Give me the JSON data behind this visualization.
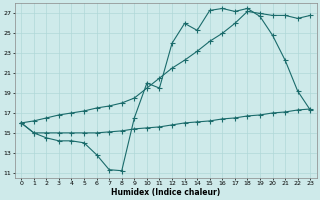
{
  "title": "",
  "xlabel": "Humidex (Indice chaleur)",
  "bg_color": "#ceeaea",
  "grid_color": "#b0d8d8",
  "line_color": "#1a6b6b",
  "xlim": [
    -0.5,
    23.5
  ],
  "ylim": [
    10.5,
    28
  ],
  "yticks": [
    11,
    13,
    15,
    17,
    19,
    21,
    23,
    25,
    27
  ],
  "xticks": [
    0,
    1,
    2,
    3,
    4,
    5,
    6,
    7,
    8,
    9,
    10,
    11,
    12,
    13,
    14,
    15,
    16,
    17,
    18,
    19,
    20,
    21,
    22,
    23
  ],
  "line1_x": [
    0,
    1,
    2,
    3,
    4,
    5,
    6,
    7,
    8,
    9,
    10,
    11,
    12,
    13,
    14,
    15,
    16,
    17,
    18,
    19,
    20,
    21,
    22,
    23
  ],
  "line1_y": [
    16.0,
    15.0,
    14.5,
    14.2,
    14.2,
    14.0,
    12.8,
    11.3,
    11.2,
    16.5,
    20.0,
    19.5,
    24.0,
    26.0,
    25.3,
    27.3,
    27.5,
    27.2,
    27.5,
    26.7,
    24.8,
    22.3,
    19.2,
    17.3
  ],
  "line2_x": [
    0,
    1,
    2,
    3,
    4,
    5,
    6,
    7,
    8,
    9,
    10,
    11,
    12,
    13,
    14,
    15,
    16,
    17,
    18,
    19,
    20,
    21,
    22,
    23
  ],
  "line2_y": [
    16.0,
    16.2,
    16.5,
    16.8,
    17.0,
    17.2,
    17.5,
    17.7,
    18.0,
    18.5,
    19.5,
    20.5,
    21.5,
    22.3,
    23.2,
    24.2,
    25.0,
    26.0,
    27.2,
    27.0,
    26.8,
    26.8,
    26.5,
    26.8
  ],
  "line3_x": [
    0,
    1,
    2,
    3,
    4,
    5,
    6,
    7,
    8,
    9,
    10,
    11,
    12,
    13,
    14,
    15,
    16,
    17,
    18,
    19,
    20,
    21,
    22,
    23
  ],
  "line3_y": [
    16.0,
    15.0,
    15.0,
    15.0,
    15.0,
    15.0,
    15.0,
    15.1,
    15.2,
    15.4,
    15.5,
    15.6,
    15.8,
    16.0,
    16.1,
    16.2,
    16.4,
    16.5,
    16.7,
    16.8,
    17.0,
    17.1,
    17.3,
    17.4
  ]
}
